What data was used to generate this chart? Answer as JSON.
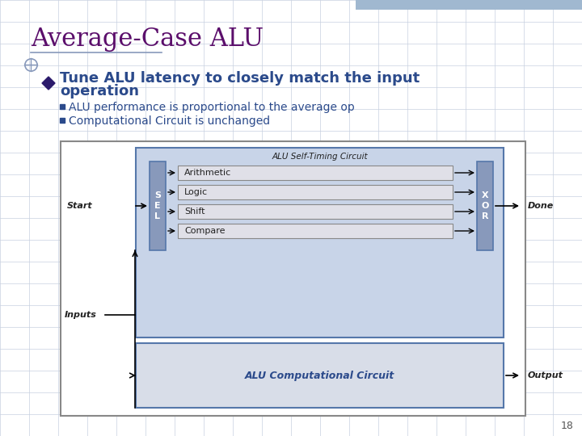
{
  "title": "Average-Case ALU",
  "title_color": "#5B0E6B",
  "title_fontsize": 22,
  "bg_color": "#FFFFFF",
  "bullet_color": "#2B4A8B",
  "bullet_text_line1": "Tune ALU latency to closely match the input",
  "bullet_text_line2": "operation",
  "sub_bullets": [
    "ALU performance is proportional to the average op",
    "Computational Circuit is unchanged"
  ],
  "diamond_color": "#2B1A6B",
  "square_bullet_color": "#2B4A8B",
  "diagram": {
    "outer_box_bg": "#FFFFFF",
    "outer_box_border": "#888888",
    "inner_box_bg": "#C8D4E8",
    "inner_box_border": "#5577AA",
    "comp_box_bg": "#D8DDE8",
    "comp_box_border": "#5577AA",
    "op_box_bg": "#E0E0E8",
    "op_box_border": "#888888",
    "sel_box_bg": "#8899BB",
    "xor_box_bg": "#8899BB",
    "label_self_timing": "ALU Self-Timing Circuit",
    "label_comp_circuit": "ALU Computational Circuit",
    "ops": [
      "Arithmetic",
      "Logic",
      "Shift",
      "Compare"
    ],
    "sel_label": "S\nE\nL",
    "xor_label": "X\nO\nR",
    "start_label": "Start",
    "inputs_label": "Inputs",
    "done_label": "Done",
    "output_label": "Output",
    "arrow_color": "#000000",
    "text_color_dark": "#222222",
    "text_color_diagram": "#2B4A8B",
    "text_color_comp": "#2B4A8B"
  },
  "page_number": "18",
  "grid_color": "#C8D0E0",
  "accent_color": "#A0B8D0"
}
